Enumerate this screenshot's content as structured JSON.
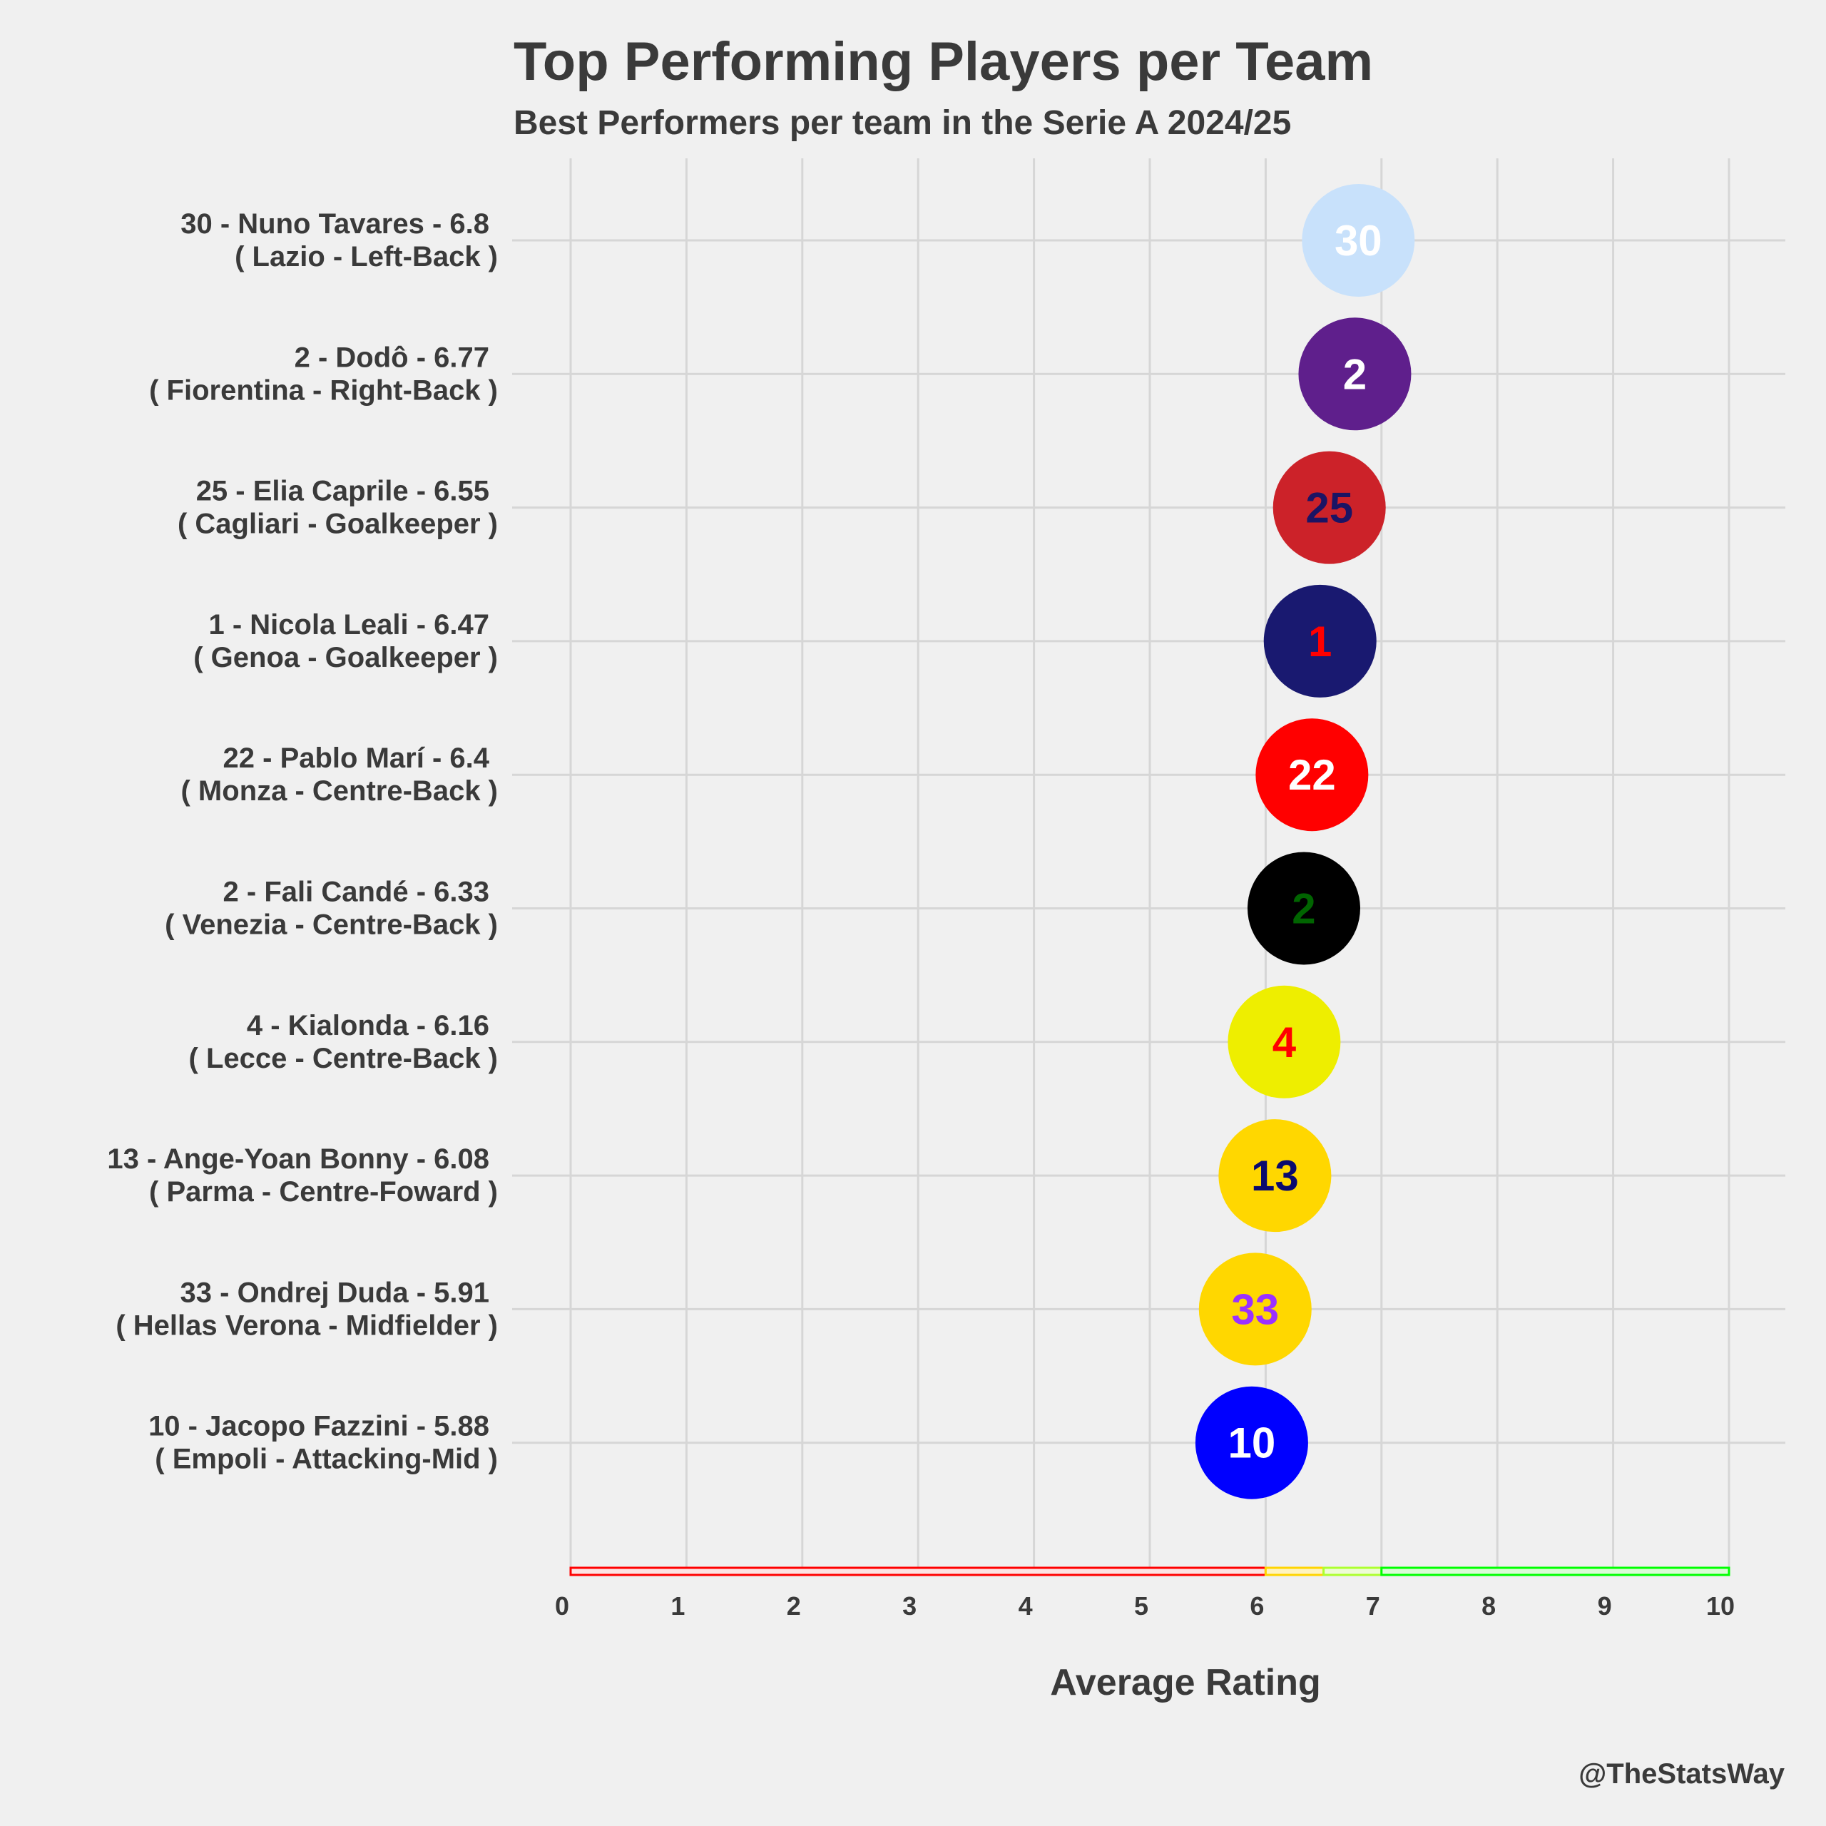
{
  "chart_data": {
    "type": "scatter",
    "title": "Top Performing Players per Team",
    "subtitle": "Best Performers per team in the Serie A 2024/25",
    "xlabel": "Average Rating",
    "xlim": [
      0,
      10
    ],
    "xticks": [
      0,
      1,
      2,
      3,
      4,
      5,
      6,
      7,
      8,
      9,
      10
    ],
    "grid": true,
    "credit": "@TheStatsWay",
    "rating_bands": [
      {
        "from": 0,
        "to": 6.0,
        "color": "#ff0000",
        "fill": "#fde3e3"
      },
      {
        "from": 6.0,
        "to": 6.5,
        "color": "#ffd500",
        "fill": "#fff4c0"
      },
      {
        "from": 6.5,
        "to": 7.0,
        "color": "#adff2f",
        "fill": "#eefcd6"
      },
      {
        "from": 7.0,
        "to": 10,
        "color": "#00ff00",
        "fill": "#dafcd6"
      }
    ],
    "points": [
      {
        "line1": "30 - Nuno Tavares - 6.8",
        "line2": "( Lazio - Left-Back )",
        "number": "30",
        "rating": 6.8,
        "fill": "#c8e1fb",
        "text_color": "#ffffff"
      },
      {
        "line1": "2 - Dodô - 6.77",
        "line2": "( Fiorentina - Right-Back )",
        "number": "2",
        "rating": 6.77,
        "fill": "#5f1f8c",
        "text_color": "#ffffff"
      },
      {
        "line1": "25 - Elia Caprile - 6.55",
        "line2": "( Cagliari - Goalkeeper )",
        "number": "25",
        "rating": 6.55,
        "fill": "#cc2229",
        "text_color": "#1b1464"
      },
      {
        "line1": "1 - Nicola Leali - 6.47",
        "line2": "( Genoa - Goalkeeper )",
        "number": "1",
        "rating": 6.47,
        "fill": "#191970",
        "text_color": "#ff0000"
      },
      {
        "line1": "22 - Pablo Marí - 6.4",
        "line2": "( Monza - Centre-Back )",
        "number": "22",
        "rating": 6.4,
        "fill": "#ff0000",
        "text_color": "#ffffff"
      },
      {
        "line1": "2 - Fali Candé - 6.33",
        "line2": "( Venezia - Centre-Back )",
        "number": "2",
        "rating": 6.33,
        "fill": "#000000",
        "text_color": "#006400"
      },
      {
        "line1": "4 - Kialonda - 6.16",
        "line2": "( Lecce - Centre-Back )",
        "number": "4",
        "rating": 6.16,
        "fill": "#eeee00",
        "text_color": "#ff0000"
      },
      {
        "line1": "13 - Ange-Yoan Bonny - 6.08",
        "line2": "( Parma - Centre-Foward )",
        "number": "13",
        "rating": 6.08,
        "fill": "#ffd700",
        "text_color": "#0a0a6e"
      },
      {
        "line1": "33 - Ondrej Duda - 5.91",
        "line2": "( Hellas Verona - Midfielder )",
        "number": "33",
        "rating": 5.91,
        "fill": "#ffd700",
        "text_color": "#9b30ff"
      },
      {
        "line1": "10 - Jacopo Fazzini - 5.88",
        "line2": "( Empoli - Attacking-Mid )",
        "number": "10",
        "rating": 5.88,
        "fill": "#0000ff",
        "text_color": "#ffffff"
      }
    ]
  }
}
